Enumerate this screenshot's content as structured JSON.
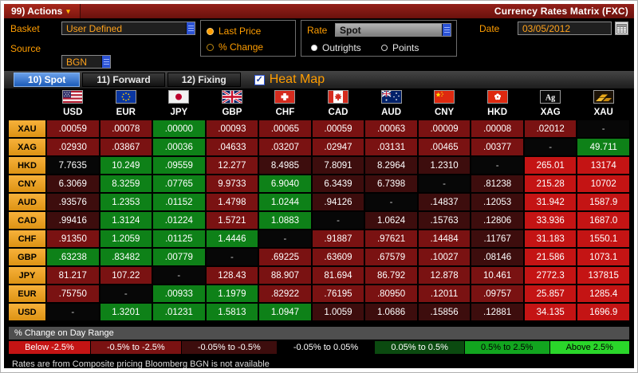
{
  "title_bar": {
    "actions_label": "99) Actions",
    "title": "Currency Rates Matrix (FXC)"
  },
  "controls": {
    "basket_label": "Basket",
    "basket_value": "User Defined",
    "source_label": "Source",
    "source_value": "BGN",
    "price_mode": {
      "options": [
        {
          "label": "Last Price",
          "selected": true
        },
        {
          "label": "% Change",
          "selected": false
        }
      ]
    },
    "rate_label": "Rate",
    "rate_value": "Spot",
    "rate_mode": {
      "options": [
        {
          "label": "Outrights",
          "selected": true
        },
        {
          "label": "Points",
          "selected": false
        }
      ]
    },
    "date_label": "Date",
    "date_value": "03/05/2012"
  },
  "tabs": [
    {
      "label": "10) Spot",
      "active": true
    },
    {
      "label": "11) Forward",
      "active": false
    },
    {
      "label": "12) Fixing",
      "active": false
    }
  ],
  "heatmap": {
    "label": "Heat Map",
    "checked": true
  },
  "heat_colors": {
    "R": "#c41414",
    "r": "#7a1212",
    "d": "#3d0d0d",
    "k": "#070707",
    "G": "#0e8118",
    "g": "#0b4a10"
  },
  "matrix": {
    "columns": [
      {
        "code": "USD",
        "flag": "us-flag-icon"
      },
      {
        "code": "EUR",
        "flag": "eu-flag-icon"
      },
      {
        "code": "JPY",
        "flag": "japan-flag-icon"
      },
      {
        "code": "GBP",
        "flag": "uk-flag-icon"
      },
      {
        "code": "CHF",
        "flag": "switzerland-flag-icon"
      },
      {
        "code": "CAD",
        "flag": "canada-flag-icon"
      },
      {
        "code": "AUD",
        "flag": "australia-flag-icon"
      },
      {
        "code": "CNY",
        "flag": "china-flag-icon"
      },
      {
        "code": "HKD",
        "flag": "hongkong-flag-icon"
      },
      {
        "code": "XAG",
        "flag": "silver-icon"
      },
      {
        "code": "XAU",
        "flag": "gold-icon"
      }
    ],
    "rows": [
      {
        "label": "XAU",
        "cells": [
          {
            "v": ".00059",
            "c": "r"
          },
          {
            "v": ".00078",
            "c": "r"
          },
          {
            "v": ".00000",
            "c": "G"
          },
          {
            "v": ".00093",
            "c": "r"
          },
          {
            "v": ".00065",
            "c": "r"
          },
          {
            "v": ".00059",
            "c": "r"
          },
          {
            "v": ".00063",
            "c": "r"
          },
          {
            "v": ".00009",
            "c": "r"
          },
          {
            "v": ".00008",
            "c": "r"
          },
          {
            "v": ".02012",
            "c": "r"
          },
          {
            "v": "-",
            "c": "k"
          }
        ]
      },
      {
        "label": "XAG",
        "cells": [
          {
            "v": ".02930",
            "c": "r"
          },
          {
            "v": ".03867",
            "c": "r"
          },
          {
            "v": ".00036",
            "c": "G"
          },
          {
            "v": ".04633",
            "c": "r"
          },
          {
            "v": ".03207",
            "c": "r"
          },
          {
            "v": ".02947",
            "c": "r"
          },
          {
            "v": ".03131",
            "c": "r"
          },
          {
            "v": ".00465",
            "c": "r"
          },
          {
            "v": ".00377",
            "c": "r"
          },
          {
            "v": "-",
            "c": "k"
          },
          {
            "v": "49.711",
            "c": "G"
          }
        ]
      },
      {
        "label": "HKD",
        "cells": [
          {
            "v": "7.7635",
            "c": "k"
          },
          {
            "v": "10.249",
            "c": "G"
          },
          {
            "v": ".09559",
            "c": "G"
          },
          {
            "v": "12.277",
            "c": "r"
          },
          {
            "v": "8.4985",
            "c": "d"
          },
          {
            "v": "7.8091",
            "c": "d"
          },
          {
            "v": "8.2964",
            "c": "d"
          },
          {
            "v": "1.2310",
            "c": "d"
          },
          {
            "v": "-",
            "c": "k"
          },
          {
            "v": "265.01",
            "c": "R"
          },
          {
            "v": "13174",
            "c": "R"
          }
        ]
      },
      {
        "label": "CNY",
        "cells": [
          {
            "v": "6.3069",
            "c": "d"
          },
          {
            "v": "8.3259",
            "c": "G"
          },
          {
            "v": ".07765",
            "c": "G"
          },
          {
            "v": "9.9733",
            "c": "r"
          },
          {
            "v": "6.9040",
            "c": "G"
          },
          {
            "v": "6.3439",
            "c": "d"
          },
          {
            "v": "6.7398",
            "c": "d"
          },
          {
            "v": "-",
            "c": "k"
          },
          {
            "v": ".81238",
            "c": "d"
          },
          {
            "v": "215.28",
            "c": "R"
          },
          {
            "v": "10702",
            "c": "R"
          }
        ]
      },
      {
        "label": "AUD",
        "cells": [
          {
            "v": ".93576",
            "c": "d"
          },
          {
            "v": "1.2353",
            "c": "G"
          },
          {
            "v": ".01152",
            "c": "G"
          },
          {
            "v": "1.4798",
            "c": "r"
          },
          {
            "v": "1.0244",
            "c": "G"
          },
          {
            "v": ".94126",
            "c": "d"
          },
          {
            "v": "-",
            "c": "k"
          },
          {
            "v": ".14837",
            "c": "d"
          },
          {
            "v": ".12053",
            "c": "d"
          },
          {
            "v": "31.942",
            "c": "R"
          },
          {
            "v": "1587.9",
            "c": "R"
          }
        ]
      },
      {
        "label": "CAD",
        "cells": [
          {
            "v": ".99416",
            "c": "d"
          },
          {
            "v": "1.3124",
            "c": "G"
          },
          {
            "v": ".01224",
            "c": "G"
          },
          {
            "v": "1.5721",
            "c": "r"
          },
          {
            "v": "1.0883",
            "c": "G"
          },
          {
            "v": "-",
            "c": "k"
          },
          {
            "v": "1.0624",
            "c": "d"
          },
          {
            "v": ".15763",
            "c": "d"
          },
          {
            "v": ".12806",
            "c": "d"
          },
          {
            "v": "33.936",
            "c": "R"
          },
          {
            "v": "1687.0",
            "c": "R"
          }
        ]
      },
      {
        "label": "CHF",
        "cells": [
          {
            "v": ".91350",
            "c": "r"
          },
          {
            "v": "1.2059",
            "c": "G"
          },
          {
            "v": ".01125",
            "c": "G"
          },
          {
            "v": "1.4446",
            "c": "G"
          },
          {
            "v": "-",
            "c": "k"
          },
          {
            "v": ".91887",
            "c": "r"
          },
          {
            "v": ".97621",
            "c": "r"
          },
          {
            "v": ".14484",
            "c": "r"
          },
          {
            "v": ".11767",
            "c": "d"
          },
          {
            "v": "31.183",
            "c": "R"
          },
          {
            "v": "1550.1",
            "c": "R"
          }
        ]
      },
      {
        "label": "GBP",
        "cells": [
          {
            "v": ".63238",
            "c": "G"
          },
          {
            "v": ".83482",
            "c": "G"
          },
          {
            "v": ".00779",
            "c": "G"
          },
          {
            "v": "-",
            "c": "k"
          },
          {
            "v": ".69225",
            "c": "r"
          },
          {
            "v": ".63609",
            "c": "r"
          },
          {
            "v": ".67579",
            "c": "r"
          },
          {
            "v": ".10027",
            "c": "r"
          },
          {
            "v": ".08146",
            "c": "d"
          },
          {
            "v": "21.586",
            "c": "R"
          },
          {
            "v": "1073.1",
            "c": "R"
          }
        ]
      },
      {
        "label": "JPY",
        "cells": [
          {
            "v": "81.217",
            "c": "r"
          },
          {
            "v": "107.22",
            "c": "r"
          },
          {
            "v": "-",
            "c": "k"
          },
          {
            "v": "128.43",
            "c": "r"
          },
          {
            "v": "88.907",
            "c": "r"
          },
          {
            "v": "81.694",
            "c": "r"
          },
          {
            "v": "86.792",
            "c": "r"
          },
          {
            "v": "12.878",
            "c": "r"
          },
          {
            "v": "10.461",
            "c": "r"
          },
          {
            "v": "2772.3",
            "c": "R"
          },
          {
            "v": "137815",
            "c": "R"
          }
        ]
      },
      {
        "label": "EUR",
        "cells": [
          {
            "v": ".75750",
            "c": "r"
          },
          {
            "v": "-",
            "c": "k"
          },
          {
            "v": ".00933",
            "c": "G"
          },
          {
            "v": "1.1979",
            "c": "G"
          },
          {
            "v": ".82922",
            "c": "r"
          },
          {
            "v": ".76195",
            "c": "r"
          },
          {
            "v": ".80950",
            "c": "r"
          },
          {
            "v": ".12011",
            "c": "r"
          },
          {
            "v": ".09757",
            "c": "r"
          },
          {
            "v": "25.857",
            "c": "R"
          },
          {
            "v": "1285.4",
            "c": "R"
          }
        ]
      },
      {
        "label": "USD",
        "cells": [
          {
            "v": "-",
            "c": "k"
          },
          {
            "v": "1.3201",
            "c": "G"
          },
          {
            "v": ".01231",
            "c": "G"
          },
          {
            "v": "1.5813",
            "c": "G"
          },
          {
            "v": "1.0947",
            "c": "G"
          },
          {
            "v": "1.0059",
            "c": "d"
          },
          {
            "v": "1.0686",
            "c": "d"
          },
          {
            "v": ".15856",
            "c": "d"
          },
          {
            "v": ".12881",
            "c": "d"
          },
          {
            "v": "34.135",
            "c": "R"
          },
          {
            "v": "1696.9",
            "c": "R"
          }
        ]
      }
    ]
  },
  "legend": {
    "title": "% Change on Day Range",
    "items": [
      {
        "label": "Below -2.5%",
        "bg": "#c41414",
        "fg": "#ffffff"
      },
      {
        "label": "-0.5% to -2.5%",
        "bg": "#7a1212",
        "fg": "#ffffff"
      },
      {
        "label": "-0.05% to -0.5%",
        "bg": "#3d0d0d",
        "fg": "#ffffff"
      },
      {
        "label": "-0.05% to 0.05%",
        "bg": "#000000",
        "fg": "#ffffff"
      },
      {
        "label": "0.05% to 0.5%",
        "bg": "#0b4a10",
        "fg": "#ffffff"
      },
      {
        "label": "0.5% to 2.5%",
        "bg": "#12a51f",
        "fg": "#000000"
      },
      {
        "label": "Above 2.5%",
        "bg": "#2ad62a",
        "fg": "#000000"
      }
    ]
  },
  "footer_note": "Rates are from Composite pricing   Bloomberg BGN is not available"
}
